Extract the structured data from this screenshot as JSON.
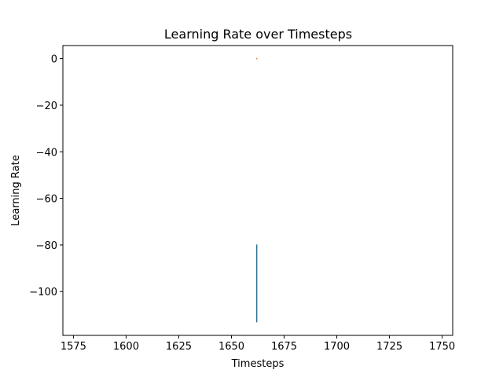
{
  "chart_data": {
    "type": "line",
    "title": "Learning Rate over Timesteps",
    "xlabel": "Timesteps",
    "ylabel": "Learning Rate",
    "xlim": [
      1570,
      1755
    ],
    "ylim": [
      -118.8,
      5.6
    ],
    "xticks": [
      1575,
      1600,
      1625,
      1650,
      1675,
      1700,
      1725,
      1750
    ],
    "yticks": [
      0,
      -20,
      -40,
      -60,
      -80,
      -100
    ],
    "xtick_labels": [
      "1575",
      "1600",
      "1625",
      "1650",
      "1675",
      "1700",
      "1725",
      "1750"
    ],
    "ytick_labels": [
      "0",
      "−20",
      "−40",
      "−60",
      "−80",
      "−100"
    ],
    "grid": false,
    "series": [
      {
        "color": "#1f77b4",
        "points": [
          [
            1662,
            -79.8
          ],
          [
            1662,
            -113.2
          ]
        ]
      },
      {
        "color": "#ff7f0e",
        "points": [
          [
            1662,
            0.3
          ],
          [
            1662,
            -0.3
          ]
        ]
      }
    ]
  }
}
